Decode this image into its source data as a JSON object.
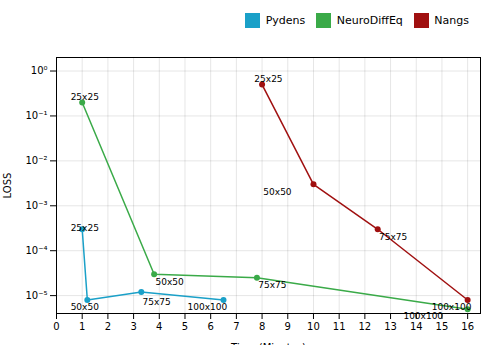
{
  "chart_data": {
    "type": "line",
    "xlabel": "Time (Minutes)",
    "ylabel": "LOSS",
    "log": "y",
    "grid": true,
    "legend": "upper right",
    "marker": "circle",
    "xlim": [
      0,
      16.5
    ],
    "xticks": [
      0,
      1,
      2,
      3,
      4,
      5,
      6,
      7,
      8,
      9,
      10,
      11,
      12,
      13,
      14,
      15,
      16
    ],
    "ylim": [
      4e-06,
      2
    ],
    "yticks": [
      {
        "value": 1e-05,
        "label": "10⁻⁵"
      },
      {
        "value": 0.0001,
        "label": "10⁻⁴"
      },
      {
        "value": 0.001,
        "label": "10⁻³"
      },
      {
        "value": 0.01,
        "label": "10⁻²"
      },
      {
        "value": 0.1,
        "label": "10⁻¹"
      },
      {
        "value": 1,
        "label": "10⁰"
      }
    ],
    "series": [
      {
        "name": "Pydens",
        "color": "#1aa0c8",
        "x": [
          1.0,
          1.2,
          3.3,
          6.5
        ],
        "values": [
          0.0003,
          8e-06,
          1.2e-05,
          8e-06
        ],
        "annotations": [
          {
            "text": "25x25",
            "x": 0.55,
            "y": 0.00032
          },
          {
            "text": "50x50",
            "x": 0.55,
            "y": 5.5e-06
          },
          {
            "text": "75x75",
            "x": 3.35,
            "y": 7e-06
          },
          {
            "text": "100x100",
            "x": 5.1,
            "y": 5.5e-06
          }
        ]
      },
      {
        "name": "NeuroDiffEq",
        "color": "#3aaa48",
        "x": [
          1.0,
          3.8,
          7.8,
          16.0
        ],
        "values": [
          0.2,
          3e-05,
          2.5e-05,
          5e-06
        ],
        "annotations": [
          {
            "text": "25x25",
            "x": 0.55,
            "y": 0.26
          },
          {
            "text": "50x50",
            "x": 3.85,
            "y": 2e-05
          },
          {
            "text": "75x75",
            "x": 7.85,
            "y": 1.7e-05
          },
          {
            "text": "100x100",
            "x": 13.5,
            "y": 3.5e-06
          }
        ]
      },
      {
        "name": "Nangs",
        "color": "#a01010",
        "x": [
          8.0,
          10.0,
          12.5,
          16.0
        ],
        "values": [
          0.5,
          0.003,
          0.0003,
          8e-06
        ],
        "annotations": [
          {
            "text": "25x25",
            "x": 7.7,
            "y": 0.65
          },
          {
            "text": "50x50",
            "x": 8.05,
            "y": 0.002
          },
          {
            "text": "75x75",
            "x": 12.55,
            "y": 0.0002
          },
          {
            "text": "100x100",
            "x": 14.6,
            "y": 5.5e-06
          }
        ]
      }
    ]
  }
}
